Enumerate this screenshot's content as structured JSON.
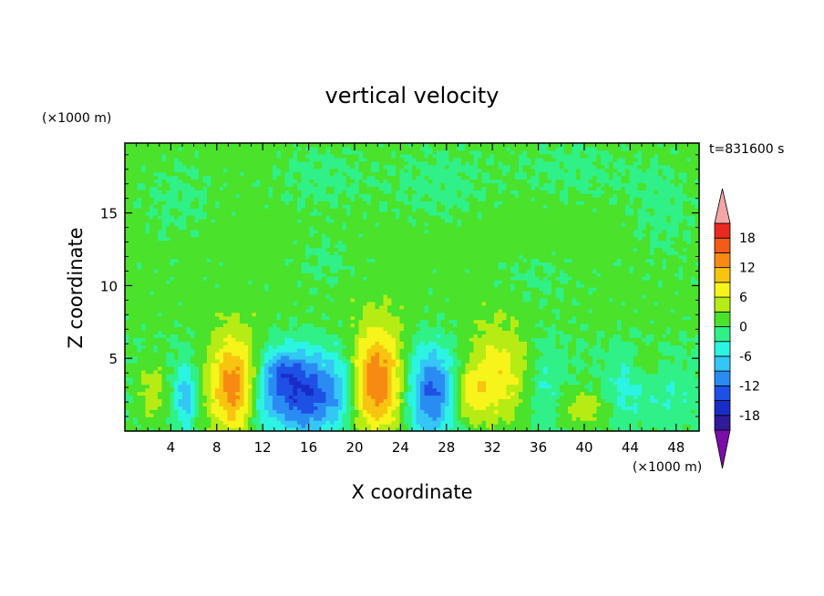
{
  "chart_data": {
    "type": "heatmap",
    "title": "vertical velocity",
    "xlabel": "X coordinate",
    "ylabel": "Z coordinate",
    "x_unit": "(×1000 m)",
    "y_unit": "(×1000 m)",
    "time_label": "t=831600 s",
    "xlim": [
      0,
      50
    ],
    "ylim": [
      0,
      19.8
    ],
    "x_ticks": [
      4,
      8,
      12,
      16,
      20,
      24,
      28,
      32,
      36,
      40,
      44,
      48
    ],
    "y_ticks": [
      5,
      10,
      15
    ],
    "colorbar": {
      "levels": [
        -21,
        -18,
        -15,
        -12,
        -9,
        -6,
        -3,
        0,
        3,
        6,
        9,
        12,
        15,
        18,
        21
      ],
      "tick_labels": [
        "18",
        "12",
        "6",
        "0",
        "-6",
        "-12",
        "-18"
      ],
      "tick_values": [
        18,
        12,
        6,
        0,
        -6,
        -12,
        -18
      ],
      "colors": [
        "#7a0ea8",
        "#301a9a",
        "#1a2cc8",
        "#1e50e6",
        "#2a8cf2",
        "#34c6f4",
        "#2cf4e2",
        "#30f088",
        "#4ae22a",
        "#b6ec14",
        "#f6f41a",
        "#f7c410",
        "#f78a12",
        "#f45a18",
        "#e82a20",
        "#f4a6a6"
      ],
      "min_arrow_color": "#7a0ea8",
      "max_arrow_color": "#f4a6a6"
    },
    "features": [
      {
        "x": 2.4,
        "z": 2.8,
        "sx": 0.9,
        "sz": 1.5,
        "amp": 5
      },
      {
        "x": 5.3,
        "z": 2.4,
        "sx": 0.7,
        "sz": 1.6,
        "amp": -8
      },
      {
        "x": 9.4,
        "z": 3.2,
        "sx": 1.5,
        "sz": 2.4,
        "amp": 14
      },
      {
        "x": 15.6,
        "z": 2.6,
        "sx": 2.2,
        "sz": 2.0,
        "amp": -15
      },
      {
        "x": 13.5,
        "z": 4.2,
        "sx": 1.2,
        "sz": 1.0,
        "amp": -6
      },
      {
        "x": 22.0,
        "z": 3.5,
        "sx": 1.6,
        "sz": 2.6,
        "amp": 15
      },
      {
        "x": 26.7,
        "z": 2.7,
        "sx": 1.5,
        "sz": 2.2,
        "amp": -13
      },
      {
        "x": 32.5,
        "z": 3.9,
        "sx": 2.0,
        "sz": 2.4,
        "amp": 8
      },
      {
        "x": 30.0,
        "z": 2.6,
        "sx": 1.0,
        "sz": 1.2,
        "amp": 6
      },
      {
        "x": 36.5,
        "z": 3.2,
        "sx": 1.0,
        "sz": 2.2,
        "amp": -4
      },
      {
        "x": 40.0,
        "z": 1.6,
        "sx": 1.4,
        "sz": 0.8,
        "amp": 5
      },
      {
        "x": 43.5,
        "z": 3.0,
        "sx": 1.2,
        "sz": 1.6,
        "amp": -4
      },
      {
        "x": 45.5,
        "z": 4.7,
        "sx": 0.7,
        "sz": 0.8,
        "amp": 3
      },
      {
        "x": 47.5,
        "z": 2.5,
        "sx": 1.6,
        "sz": 1.4,
        "amp": -3
      },
      {
        "x": 12.0,
        "z": 2.0,
        "sx": 1.0,
        "sz": 1.4,
        "amp": -4
      },
      {
        "x": 18.8,
        "z": 3.0,
        "sx": 0.9,
        "sz": 1.8,
        "amp": -4
      }
    ],
    "upper_layer": {
      "base": 1.2,
      "low_value_patches": [
        {
          "x": 17.0,
          "z": 17.5,
          "sx": 4.0,
          "sz": 2.2
        },
        {
          "x": 27.5,
          "z": 17.0,
          "sx": 3.5,
          "sz": 2.5
        },
        {
          "x": 39.0,
          "z": 18.0,
          "sx": 4.5,
          "sz": 2.0
        },
        {
          "x": 4.5,
          "z": 16.0,
          "sx": 3.0,
          "sz": 2.5
        },
        {
          "x": 47.0,
          "z": 15.0,
          "sx": 2.5,
          "sz": 3.0
        },
        {
          "x": 36.0,
          "z": 10.5,
          "sx": 2.5,
          "sz": 1.5
        },
        {
          "x": 17.5,
          "z": 11.5,
          "sx": 2.0,
          "sz": 1.5
        }
      ]
    }
  }
}
